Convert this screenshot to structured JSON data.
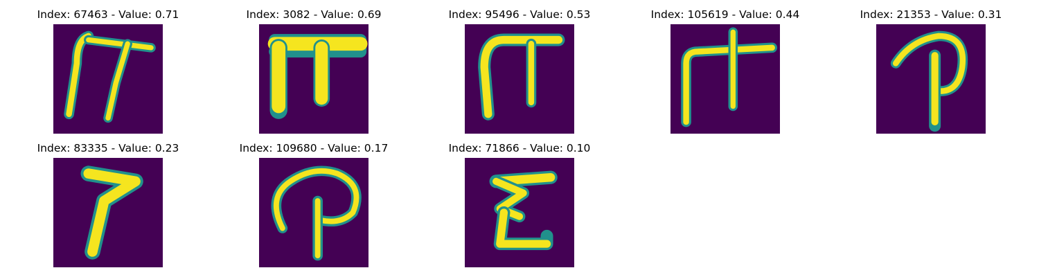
{
  "panels": [
    {
      "index": "67463",
      "value": "0.71",
      "title": "Index: 67463 - Value: 0.71",
      "glyph": "pi-stroke-icon"
    },
    {
      "index": "3082",
      "value": "0.69",
      "title": "Index: 3082 - Value: 0.69",
      "glyph": "pi-bold-icon"
    },
    {
      "index": "95496",
      "value": "0.53",
      "title": "Index: 95496 - Value: 0.53",
      "glyph": "pi-arch-icon"
    },
    {
      "index": "105619",
      "value": "0.44",
      "title": "Index: 105619 - Value: 0.44",
      "glyph": "pi-cross-icon"
    },
    {
      "index": "21353",
      "value": "0.31",
      "title": "Index: 21353 - Value: 0.31",
      "glyph": "p-loop-icon"
    },
    {
      "index": "83335",
      "value": "0.23",
      "title": "Index: 83335 - Value: 0.23",
      "glyph": "seven-hook-icon"
    },
    {
      "index": "109680",
      "value": "0.17",
      "title": "Index: 109680 - Value: 0.17",
      "glyph": "p-curl-icon"
    },
    {
      "index": "71866",
      "value": "0.10",
      "title": "Index: 71866 - Value: 0.10",
      "glyph": "e-shape-icon"
    }
  ],
  "colors": {
    "background": "#440154",
    "stroke_core": "#f5e51f",
    "stroke_edge": "#21918c",
    "stroke_mid": "#5ec962"
  }
}
